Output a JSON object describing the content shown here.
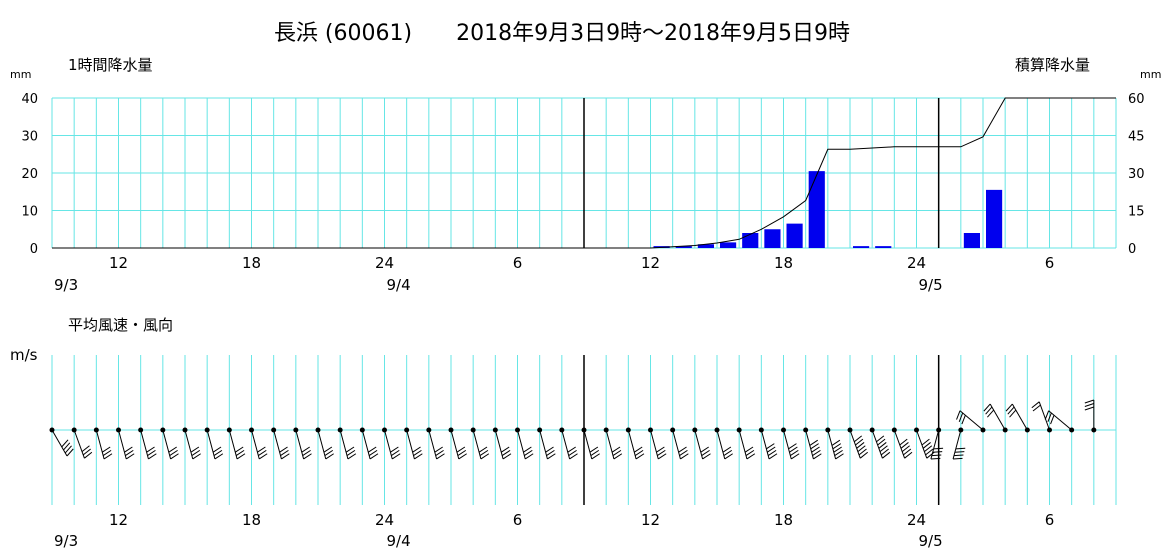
{
  "page": {
    "title": "長浜 (60061)　　2018年9月3日9時～2018年9月5日9時"
  },
  "colors": {
    "grid": "#66e6e6",
    "bar": "#0000ee",
    "line": "#000000",
    "day_line": "#000000"
  },
  "chart_data": [
    {
      "type": "bar",
      "title": "1時間降水量",
      "y_unit": "mm",
      "ylim": [
        0,
        40
      ],
      "y_ticks": [
        "0",
        "10",
        "20",
        "30",
        "40"
      ],
      "x_ticks": [
        "12",
        "18",
        "24",
        "6",
        "12",
        "18",
        "24",
        "6"
      ],
      "date_labels": [
        "9/3",
        "9/4",
        "9/5"
      ],
      "hours": 48,
      "start": "2018-09-03 09:00",
      "grid": true,
      "values": [
        0,
        0,
        0,
        0,
        0,
        0,
        0,
        0,
        0,
        0,
        0,
        0,
        0,
        0,
        0,
        0,
        0,
        0,
        0,
        0,
        0,
        0,
        0,
        0,
        0,
        0,
        0,
        0.5,
        0.5,
        1,
        1.5,
        4,
        5,
        6.5,
        20.5,
        0,
        0.5,
        0.5,
        0,
        0,
        0,
        4,
        15.5,
        0,
        0,
        0,
        0,
        0
      ],
      "secondary": {
        "type": "line",
        "title": "積算降水量",
        "y_unit": "mm",
        "ylim": [
          0,
          60
        ],
        "y_ticks": [
          "0",
          "15",
          "30",
          "45",
          "60"
        ],
        "values": [
          0,
          0,
          0,
          0,
          0,
          0,
          0,
          0,
          0,
          0,
          0,
          0,
          0,
          0,
          0,
          0,
          0,
          0,
          0,
          0,
          0,
          0,
          0,
          0,
          0,
          0,
          0,
          0,
          0.5,
          1,
          2,
          3.5,
          7.5,
          12.5,
          19,
          39.5,
          39.5,
          40,
          40.5,
          40.5,
          40.5,
          40.5,
          44.5,
          60,
          60,
          60,
          60,
          60,
          60
        ]
      }
    },
    {
      "type": "scatter",
      "title": "平均風速・風向",
      "y_unit": "m/s",
      "x_ticks": [
        "12",
        "18",
        "24",
        "6",
        "12",
        "18",
        "24",
        "6"
      ],
      "date_labels": [
        "9/3",
        "9/4",
        "9/5"
      ],
      "grid": true,
      "wind_dir_deg": [
        330,
        340,
        345,
        345,
        345,
        345,
        345,
        345,
        345,
        345,
        345,
        345,
        345,
        345,
        345,
        345,
        345,
        345,
        345,
        345,
        345,
        345,
        345,
        345,
        345,
        345,
        345,
        345,
        345,
        345,
        345,
        345,
        345,
        345,
        345,
        345,
        340,
        340,
        340,
        340,
        15,
        15,
        130,
        150,
        150,
        160,
        130,
        180
      ],
      "wind_speed_ms": [
        4,
        3,
        3,
        3,
        3,
        3,
        3,
        3,
        3,
        3,
        3,
        3,
        3,
        3,
        3,
        3,
        3,
        3,
        3,
        3,
        3,
        3,
        3,
        3,
        3,
        3,
        3,
        3,
        3,
        3,
        3,
        3,
        4,
        4,
        5,
        5,
        6,
        6,
        5,
        5,
        4,
        4,
        3,
        3,
        3,
        2,
        3,
        3
      ]
    }
  ]
}
